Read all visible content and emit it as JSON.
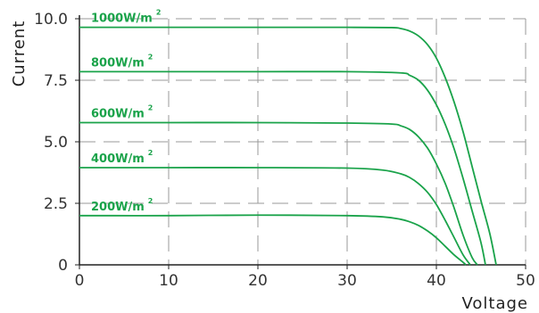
{
  "chart_data": {
    "type": "line",
    "title": "",
    "xlabel": "Voltage",
    "ylabel": "Current",
    "xlim": [
      0,
      50
    ],
    "ylim": [
      0,
      10
    ],
    "x_ticks": [
      0,
      10,
      20,
      30,
      40,
      50
    ],
    "y_ticks": [
      0,
      2.5,
      5.0,
      7.5,
      10.0
    ],
    "x_tick_labels": [
      "0",
      "10",
      "20",
      "30",
      "40",
      "50"
    ],
    "y_tick_labels": [
      "0",
      "2.5",
      "5.0",
      "7.5",
      "10.0"
    ],
    "grid": true,
    "grid_style": "dashed",
    "line_color": "#1aa34a",
    "series": [
      {
        "name": "1000W/m",
        "superscript": "2",
        "points": [
          [
            0,
            9.65
          ],
          [
            10,
            9.65
          ],
          [
            20,
            9.65
          ],
          [
            30,
            9.65
          ],
          [
            35,
            9.64
          ],
          [
            36,
            9.6
          ],
          [
            37,
            9.5
          ],
          [
            38,
            9.3
          ],
          [
            39,
            8.95
          ],
          [
            40,
            8.4
          ],
          [
            41,
            7.6
          ],
          [
            42,
            6.6
          ],
          [
            43,
            5.4
          ],
          [
            44,
            4.0
          ],
          [
            45,
            2.6
          ],
          [
            46,
            1.25
          ],
          [
            46.7,
            0
          ]
        ]
      },
      {
        "name": "800W/m",
        "superscript": "2",
        "points": [
          [
            0,
            7.85
          ],
          [
            10,
            7.85
          ],
          [
            20,
            7.85
          ],
          [
            30,
            7.85
          ],
          [
            36,
            7.8
          ],
          [
            37,
            7.7
          ],
          [
            38,
            7.5
          ],
          [
            39,
            7.1
          ],
          [
            40,
            6.5
          ],
          [
            41,
            5.7
          ],
          [
            42,
            4.7
          ],
          [
            43,
            3.5
          ],
          [
            44,
            2.2
          ],
          [
            45,
            0.9
          ],
          [
            45.5,
            0
          ]
        ]
      },
      {
        "name": "600W/m",
        "superscript": "2",
        "points": [
          [
            0,
            5.78
          ],
          [
            10,
            5.78
          ],
          [
            20,
            5.78
          ],
          [
            30,
            5.76
          ],
          [
            35,
            5.72
          ],
          [
            36,
            5.65
          ],
          [
            37,
            5.5
          ],
          [
            38,
            5.2
          ],
          [
            39,
            4.75
          ],
          [
            40,
            4.1
          ],
          [
            41,
            3.3
          ],
          [
            42,
            2.3
          ],
          [
            43,
            1.2
          ],
          [
            44,
            0.3
          ],
          [
            44.6,
            0
          ]
        ]
      },
      {
        "name": "400W/m",
        "superscript": "2",
        "points": [
          [
            0,
            3.95
          ],
          [
            10,
            3.95
          ],
          [
            20,
            3.95
          ],
          [
            30,
            3.93
          ],
          [
            34,
            3.85
          ],
          [
            36,
            3.7
          ],
          [
            37,
            3.55
          ],
          [
            38,
            3.3
          ],
          [
            39,
            2.95
          ],
          [
            40,
            2.45
          ],
          [
            41,
            1.8
          ],
          [
            42,
            1.1
          ],
          [
            43,
            0.4
          ],
          [
            43.8,
            0
          ]
        ]
      },
      {
        "name": "200W/m",
        "superscript": "2",
        "points": [
          [
            0,
            2.0
          ],
          [
            10,
            2.0
          ],
          [
            20,
            2.02
          ],
          [
            30,
            2.0
          ],
          [
            34,
            1.95
          ],
          [
            36,
            1.85
          ],
          [
            37,
            1.75
          ],
          [
            38,
            1.6
          ],
          [
            39,
            1.38
          ],
          [
            40,
            1.1
          ],
          [
            41,
            0.75
          ],
          [
            42,
            0.4
          ],
          [
            43,
            0.1
          ],
          [
            43.3,
            0
          ]
        ]
      }
    ]
  }
}
